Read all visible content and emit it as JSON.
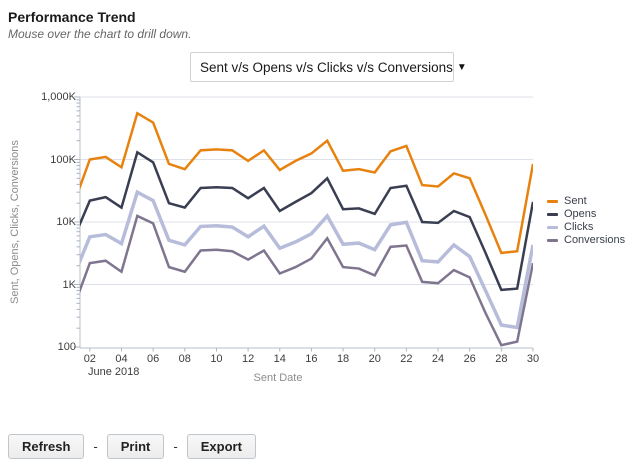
{
  "header": {
    "title": "Performance Trend",
    "subtitle": "Mouse over the chart to drill down."
  },
  "metric_selector": {
    "value": "Sent v/s Opens v/s Clicks v/s Conversions",
    "arrow": "▼"
  },
  "chart_data": {
    "type": "line",
    "title": "",
    "xlabel": "Sent Date",
    "ylabel": "Sent, Opens, Clicks, Conversions",
    "x_context_label": "June 2018",
    "y_scale": "log",
    "ylim": [
      100,
      1000000
    ],
    "grid": "horizontal",
    "legend_position": "right",
    "x": [
      1,
      2,
      3,
      4,
      5,
      6,
      7,
      8,
      9,
      10,
      11,
      12,
      13,
      14,
      15,
      16,
      17,
      18,
      19,
      20,
      21,
      22,
      23,
      24,
      25,
      26,
      27,
      28,
      29,
      30
    ],
    "x_ticks": [
      {
        "day": 2,
        "label": "02"
      },
      {
        "day": 4,
        "label": "04"
      },
      {
        "day": 6,
        "label": "06"
      },
      {
        "day": 8,
        "label": "08"
      },
      {
        "day": 10,
        "label": "10"
      },
      {
        "day": 12,
        "label": "12"
      },
      {
        "day": 14,
        "label": "14"
      },
      {
        "day": 16,
        "label": "16"
      },
      {
        "day": 18,
        "label": "18"
      },
      {
        "day": 20,
        "label": "20"
      },
      {
        "day": 22,
        "label": "22"
      },
      {
        "day": 24,
        "label": "24"
      },
      {
        "day": 26,
        "label": "26"
      },
      {
        "day": 28,
        "label": "28"
      },
      {
        "day": 30,
        "label": "30"
      }
    ],
    "y_ticks": [
      {
        "value": 100,
        "label": "100"
      },
      {
        "value": 1000,
        "label": "1K"
      },
      {
        "value": 10000,
        "label": "10K"
      },
      {
        "value": 100000,
        "label": "100K"
      },
      {
        "value": 1000000,
        "label": "1,000K"
      }
    ],
    "series": [
      {
        "name": "Sent",
        "color": "#E8820F",
        "line_width": 2.5,
        "values": [
          20000,
          100000,
          110000,
          75000,
          550000,
          390000,
          85000,
          70000,
          140000,
          145000,
          140000,
          95000,
          140000,
          68000,
          95000,
          125000,
          200000,
          66000,
          70000,
          62000,
          135000,
          165000,
          39000,
          37000,
          60000,
          50000,
          13000,
          3200,
          3400,
          85000
        ]
      },
      {
        "name": "Opens",
        "color": "#3A3E52",
        "line_width": 2.5,
        "values": [
          5600,
          22000,
          25000,
          17000,
          130000,
          90000,
          20000,
          17000,
          35000,
          36000,
          35000,
          24000,
          35000,
          15000,
          21000,
          29000,
          50000,
          16000,
          16500,
          13500,
          35000,
          38000,
          10000,
          9700,
          15000,
          12000,
          3200,
          820,
          860,
          21000
        ]
      },
      {
        "name": "Clicks",
        "color": "#B7BCDA",
        "line_width": 3.5,
        "values": [
          1400,
          5800,
          6300,
          4500,
          30000,
          22000,
          5100,
          4300,
          8500,
          8700,
          8300,
          5800,
          8600,
          3800,
          4800,
          6500,
          12500,
          4400,
          4600,
          3600,
          9000,
          9900,
          2400,
          2300,
          4300,
          2800,
          800,
          225,
          205,
          4300
        ]
      },
      {
        "name": "Conversions",
        "color": "#80758F",
        "line_width": 2.5,
        "values": [
          450,
          2200,
          2400,
          1600,
          12500,
          9500,
          1900,
          1600,
          3500,
          3600,
          3400,
          2500,
          3500,
          1500,
          1900,
          2600,
          5500,
          1900,
          1800,
          1400,
          4000,
          4200,
          1100,
          1050,
          1700,
          1300,
          350,
          107,
          122,
          2200
        ]
      }
    ]
  },
  "footer": {
    "separator": "-",
    "buttons": [
      {
        "label": "Refresh"
      },
      {
        "label": "Print"
      },
      {
        "label": "Export"
      }
    ]
  }
}
